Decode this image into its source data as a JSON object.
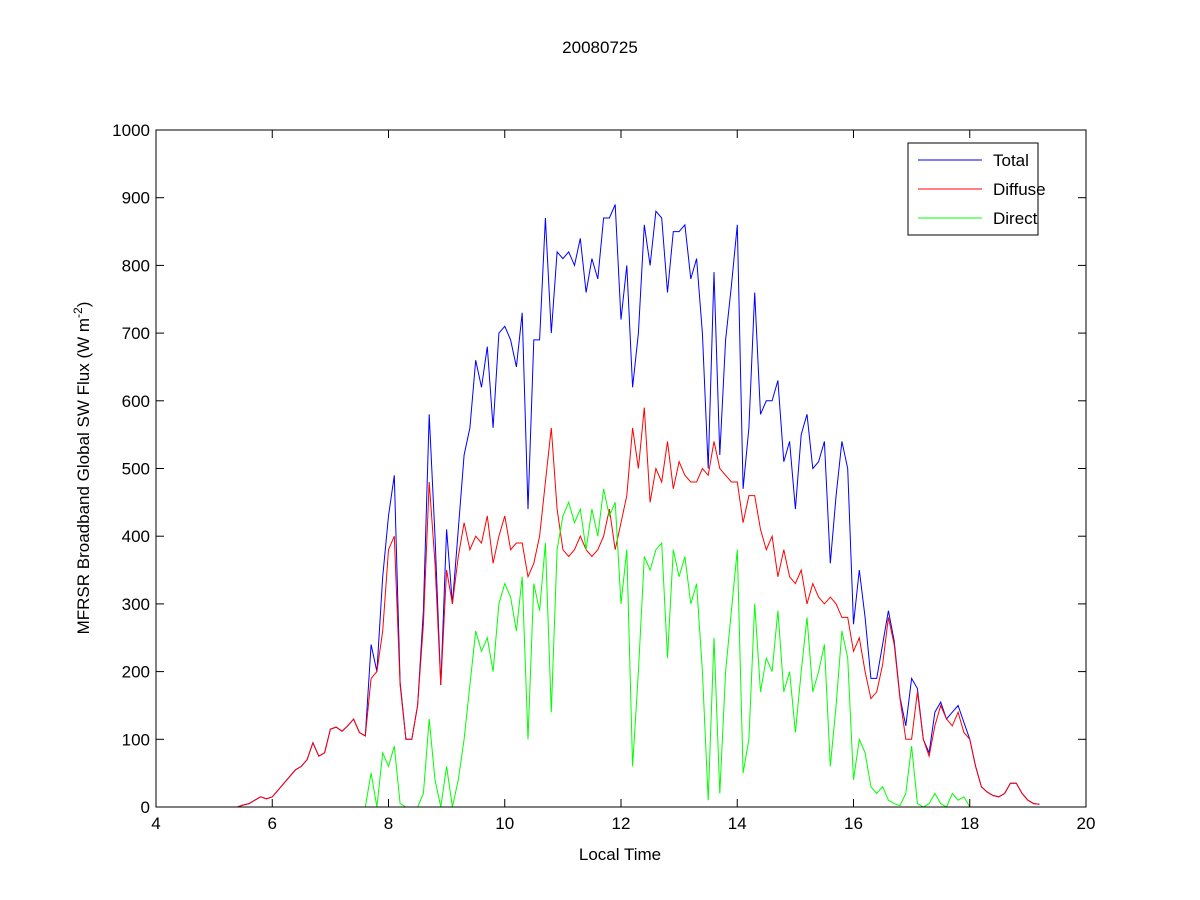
{
  "chart_data": {
    "type": "line",
    "title": "20080725",
    "xlabel": "Local Time",
    "ylabel": {
      "main": "MFRSR Broadband Global SW Flux (W m",
      "sup": "-2",
      "end": ")"
    },
    "xlim": [
      4,
      20
    ],
    "ylim": [
      0,
      1000
    ],
    "xticks": [
      4,
      6,
      8,
      10,
      12,
      14,
      16,
      18,
      20
    ],
    "yticks": [
      0,
      100,
      200,
      300,
      400,
      500,
      600,
      700,
      800,
      900,
      1000
    ],
    "grid": false,
    "legend_position": "top-right",
    "x_start": 5.4,
    "x_step": 0.1,
    "series": [
      {
        "name": "Total",
        "color": "#0000ff",
        "values": [
          0,
          3,
          5,
          10,
          15,
          12,
          15,
          25,
          35,
          45,
          55,
          60,
          70,
          95,
          75,
          80,
          115,
          118,
          112,
          120,
          130,
          110,
          105,
          240,
          200,
          340,
          430,
          490,
          185,
          100,
          100,
          150,
          290,
          580,
          400,
          180,
          410,
          300,
          410,
          520,
          560,
          660,
          620,
          680,
          560,
          700,
          710,
          690,
          650,
          730,
          440,
          690,
          690,
          870,
          700,
          820,
          810,
          820,
          800,
          840,
          760,
          810,
          780,
          870,
          870,
          890,
          720,
          800,
          620,
          700,
          860,
          800,
          880,
          870,
          760,
          850,
          850,
          860,
          780,
          810,
          700,
          500,
          790,
          520,
          690,
          770,
          860,
          470,
          560,
          760,
          580,
          600,
          600,
          630,
          510,
          540,
          440,
          550,
          580,
          500,
          510,
          540,
          360,
          460,
          540,
          500,
          270,
          350,
          280,
          190,
          190,
          240,
          290,
          245,
          162,
          120,
          190,
          175,
          100,
          80,
          140,
          155,
          130,
          140,
          150,
          125,
          100,
          60,
          30,
          22,
          17,
          15,
          20,
          35,
          35,
          20,
          10,
          5,
          4
        ]
      },
      {
        "name": "Diffuse",
        "color": "#ff0000",
        "values": [
          0,
          3,
          5,
          10,
          15,
          12,
          15,
          25,
          35,
          45,
          55,
          60,
          70,
          95,
          75,
          80,
          115,
          118,
          112,
          120,
          130,
          110,
          105,
          190,
          200,
          260,
          380,
          400,
          180,
          100,
          100,
          150,
          270,
          480,
          360,
          180,
          350,
          300,
          370,
          420,
          380,
          400,
          390,
          430,
          360,
          400,
          430,
          380,
          390,
          390,
          340,
          360,
          400,
          480,
          560,
          440,
          380,
          370,
          380,
          400,
          380,
          370,
          380,
          400,
          440,
          380,
          420,
          460,
          560,
          500,
          590,
          450,
          500,
          480,
          540,
          470,
          510,
          490,
          480,
          480,
          500,
          490,
          540,
          500,
          490,
          480,
          480,
          420,
          460,
          460,
          410,
          380,
          400,
          340,
          380,
          340,
          330,
          350,
          300,
          330,
          310,
          300,
          310,
          300,
          280,
          280,
          230,
          250,
          200,
          160,
          170,
          210,
          280,
          240,
          160,
          100,
          100,
          170,
          100,
          75,
          120,
          150,
          130,
          120,
          140,
          110,
          100,
          60,
          30,
          22,
          17,
          15,
          20,
          35,
          35,
          20,
          10,
          5,
          4
        ]
      },
      {
        "name": "Direct",
        "color": "#00ff00",
        "values": [
          0,
          0,
          0,
          0,
          0,
          0,
          0,
          0,
          0,
          0,
          0,
          0,
          0,
          0,
          0,
          0,
          0,
          0,
          0,
          0,
          0,
          0,
          0,
          50,
          0,
          80,
          60,
          90,
          5,
          0,
          0,
          0,
          20,
          130,
          40,
          0,
          60,
          0,
          40,
          100,
          180,
          260,
          230,
          250,
          200,
          300,
          330,
          310,
          260,
          340,
          100,
          330,
          290,
          390,
          140,
          380,
          430,
          450,
          420,
          440,
          380,
          440,
          400,
          470,
          430,
          450,
          300,
          380,
          60,
          200,
          370,
          350,
          380,
          390,
          220,
          380,
          340,
          370,
          300,
          330,
          200,
          10,
          250,
          20,
          200,
          290,
          380,
          50,
          100,
          300,
          170,
          220,
          200,
          290,
          170,
          200,
          110,
          200,
          280,
          170,
          200,
          240,
          60,
          150,
          260,
          220,
          40,
          100,
          80,
          30,
          20,
          30,
          10,
          5,
          2,
          20,
          90,
          5,
          0,
          5,
          20,
          5,
          0,
          20,
          10,
          15,
          0,
          0,
          0,
          0,
          0,
          0,
          0,
          0,
          0,
          0,
          0,
          0,
          0
        ]
      }
    ]
  }
}
